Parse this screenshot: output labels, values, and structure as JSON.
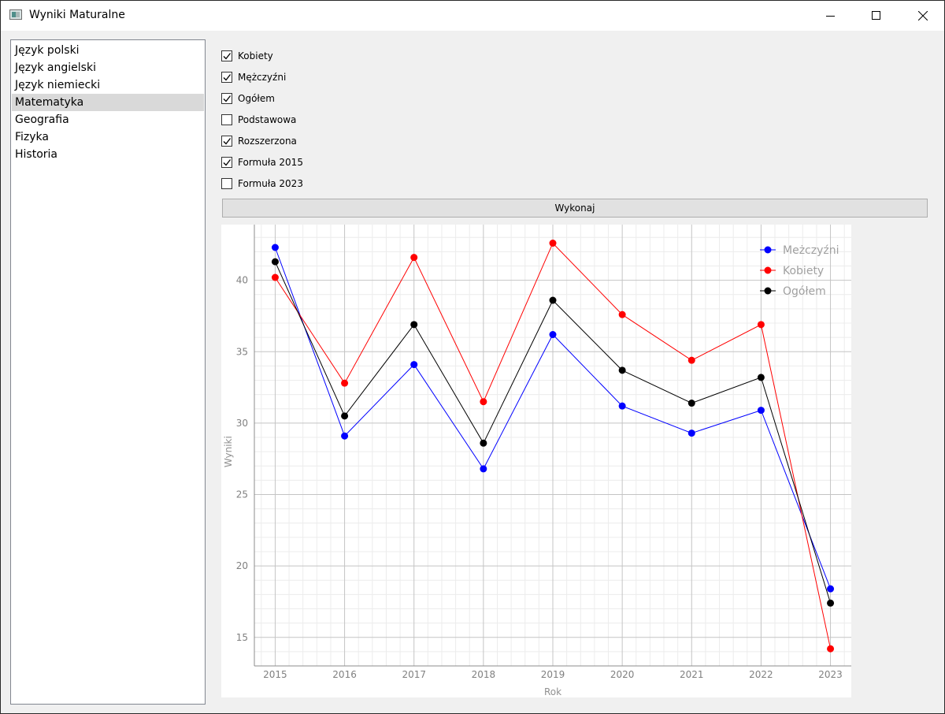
{
  "window": {
    "title": "Wyniki Maturalne"
  },
  "subjects": {
    "items": [
      "Język polski",
      "Język angielski",
      "Język niemiecki",
      "Matematyka",
      "Geografia",
      "Fizyka",
      "Historia"
    ],
    "selected": "Matematyka"
  },
  "filters": [
    {
      "label": "Kobiety",
      "checked": true
    },
    {
      "label": "Mężczyźni",
      "checked": true
    },
    {
      "label": "Ogółem",
      "checked": true
    },
    {
      "label": "Podstawowa",
      "checked": false
    },
    {
      "label": "Rozszerzona",
      "checked": true
    },
    {
      "label": "Formuła 2015",
      "checked": true
    },
    {
      "label": "Formuła 2023",
      "checked": false
    }
  ],
  "run_button": {
    "label": "Wykonaj"
  },
  "chart_data": {
    "type": "line",
    "xlabel": "Rok",
    "ylabel": "Wyniki",
    "x": [
      2015,
      2016,
      2017,
      2018,
      2019,
      2020,
      2021,
      2022,
      2023
    ],
    "xlim": [
      2014.7,
      2023.3
    ],
    "ylim": [
      13,
      43.9
    ],
    "yticks": [
      15,
      20,
      25,
      30,
      35,
      40
    ],
    "grid": true,
    "legend": "top-right",
    "series": [
      {
        "name": "Meżczyźni",
        "color": "#0000ff",
        "values": [
          42.3,
          29.1,
          34.1,
          26.8,
          36.2,
          31.2,
          29.3,
          30.9,
          18.4
        ]
      },
      {
        "name": "Kobiety",
        "color": "#ff0000",
        "values": [
          40.2,
          32.8,
          41.6,
          31.5,
          42.6,
          37.6,
          34.4,
          36.9,
          14.2
        ]
      },
      {
        "name": "Ogółem",
        "color": "#000000",
        "values": [
          41.3,
          30.5,
          36.9,
          28.6,
          38.6,
          33.7,
          31.4,
          33.2,
          17.4
        ]
      }
    ]
  }
}
